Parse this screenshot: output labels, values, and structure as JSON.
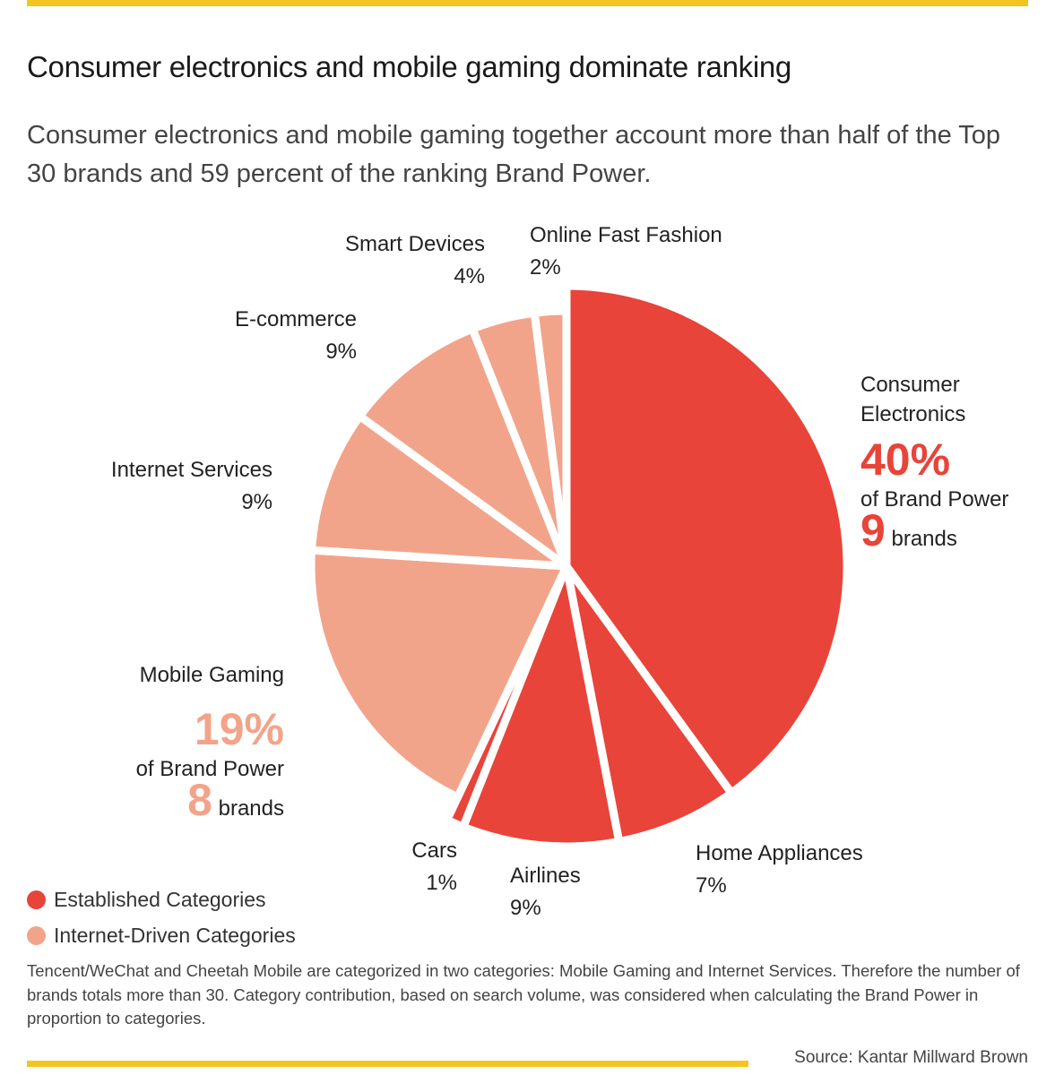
{
  "header": {
    "title": "Consumer electronics and mobile gaming dominate ranking",
    "subtitle": "Consumer electronics and mobile gaming together account more than half of the Top 30 brands and 59 percent of the ranking Brand Power."
  },
  "colors": {
    "established": "#e8443a",
    "internet": "#f2a48a",
    "accent_rule": "#f2c61f"
  },
  "chart_data": {
    "type": "pie",
    "title": "Consumer electronics and mobile gaming dominate ranking",
    "unit": "% of Brand Power",
    "slices": [
      {
        "label": "Consumer Electronics",
        "value": 40,
        "display": "40%",
        "group": "established",
        "brands": 9
      },
      {
        "label": "Home Appliances",
        "value": 7,
        "display": "7%",
        "group": "established"
      },
      {
        "label": "Airlines",
        "value": 9,
        "display": "9%",
        "group": "established"
      },
      {
        "label": "Cars",
        "value": 1,
        "display": "1%",
        "group": "established"
      },
      {
        "label": "Mobile Gaming",
        "value": 19,
        "display": "19%",
        "group": "internet",
        "brands": 8
      },
      {
        "label": "Internet Services",
        "value": 9,
        "display": "9%",
        "group": "internet"
      },
      {
        "label": "E-commerce",
        "value": 9,
        "display": "9%",
        "group": "internet"
      },
      {
        "label": "Smart Devices",
        "value": 4,
        "display": "4%",
        "group": "internet"
      },
      {
        "label": "Online Fast Fashion",
        "value": 2,
        "display": "2%",
        "group": "internet"
      }
    ],
    "legend": [
      {
        "label": "Established Categories",
        "group": "established"
      },
      {
        "label": "Internet-Driven Categories",
        "group": "internet"
      }
    ]
  },
  "callouts": {
    "consumer_electronics": {
      "line1": "Consumer",
      "line2": "Electronics",
      "pct": "40%",
      "bp": "of Brand Power",
      "num": "9",
      "brands": "brands"
    },
    "mobile_gaming": {
      "name": "Mobile Gaming",
      "pct": "19%",
      "bp": "of Brand Power",
      "num": "8",
      "brands": "brands"
    }
  },
  "footnote": "Tencent/WeChat and Cheetah Mobile are categorized in two categories: Mobile Gaming and Internet Services. Therefore the number of brands totals more than 30. Category contribution, based on search volume, was considered when calculating the Brand Power in proportion to categories.",
  "source": "Source: Kantar Millward Brown"
}
